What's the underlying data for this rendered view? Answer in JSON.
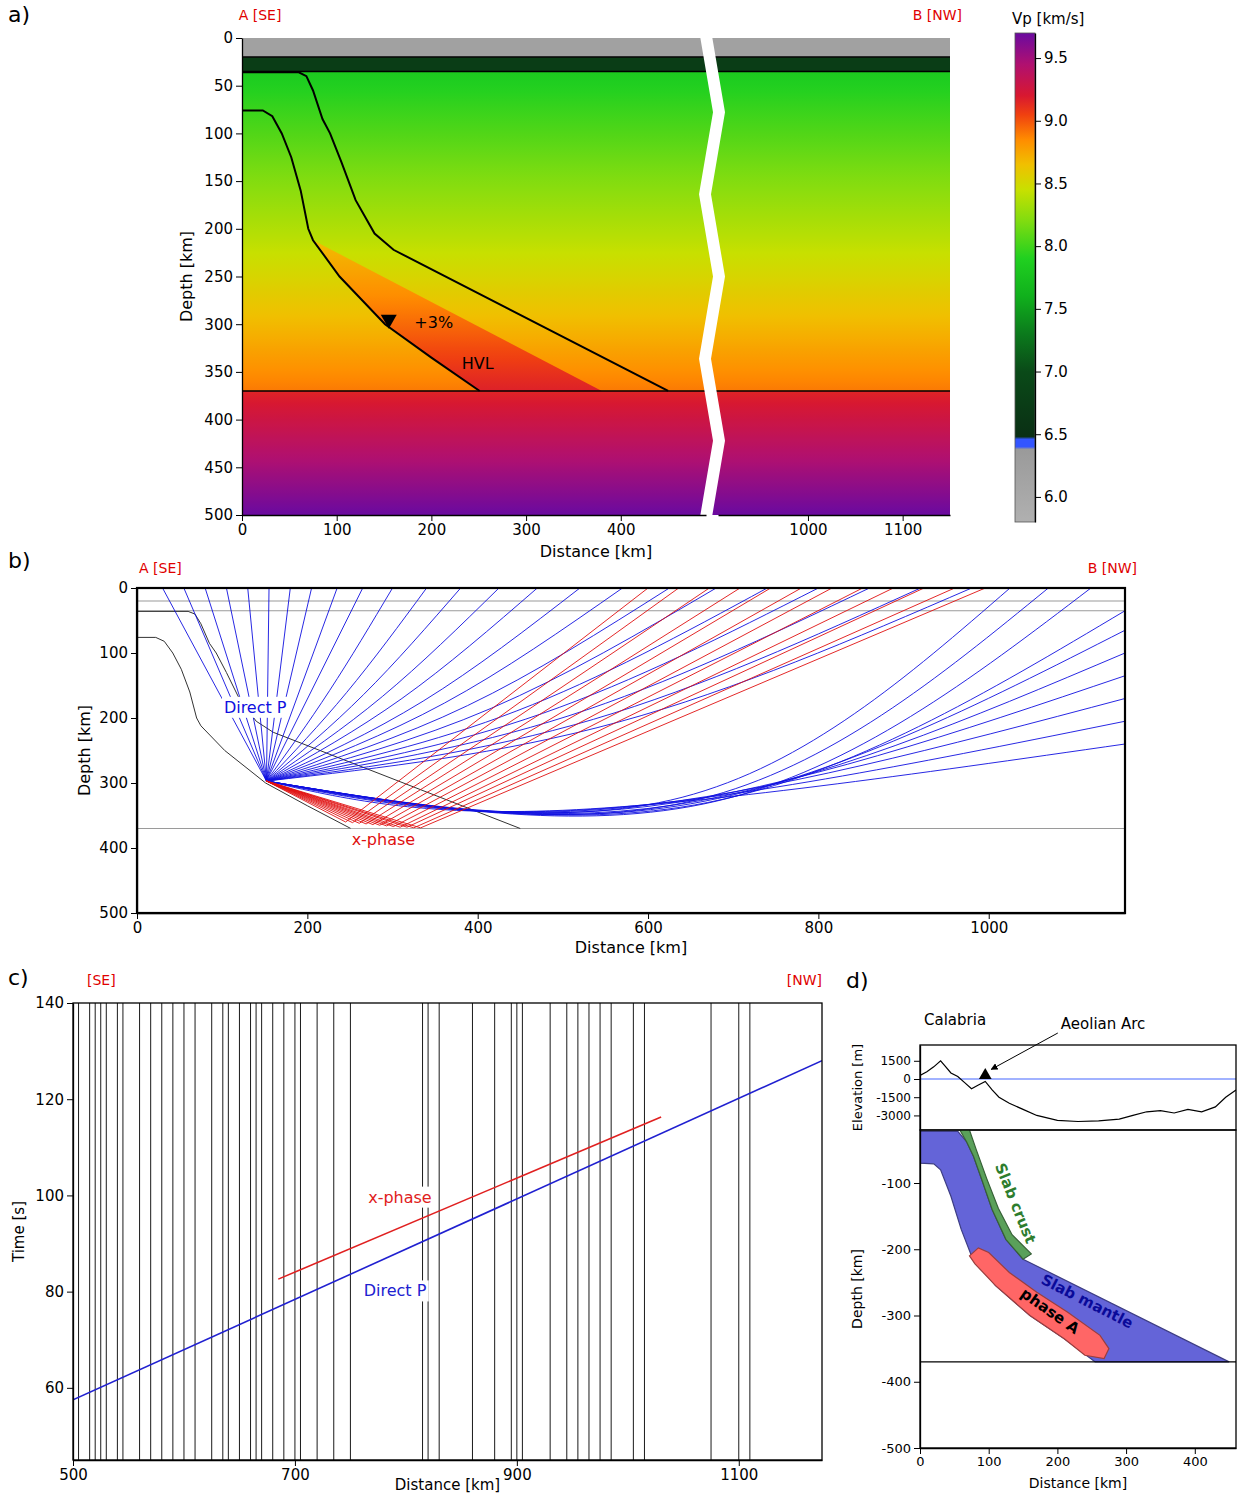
{
  "chart_data": [
    {
      "type": "section",
      "panel_label": "a)",
      "left_label": "A [SE]",
      "right_label": "B [NW]",
      "x_label": "Distance [km]",
      "y_label": "Depth [km]",
      "xlim": [
        0,
        1150
      ],
      "x_break": [
        490,
        905
      ],
      "xticks": [
        0,
        100,
        200,
        300,
        400,
        1000,
        1100
      ],
      "ylim": [
        500,
        0
      ],
      "yticks": [
        0,
        50,
        100,
        150,
        200,
        250,
        300,
        350,
        400,
        450,
        500
      ],
      "layers": [
        {
          "top": 0,
          "bottom": 20,
          "vp": [
            6.2,
            6.2
          ]
        },
        {
          "top": 20,
          "bottom": 35,
          "vp": [
            6.75,
            6.75
          ]
        },
        {
          "top": 35,
          "bottom": 370,
          "vp": [
            7.85,
            8.9
          ]
        },
        {
          "top": 370,
          "bottom": 500,
          "vp": [
            9.15,
            9.7
          ]
        }
      ],
      "slab_top": {
        "x": [
          0,
          60,
          68,
          75,
          85,
          93,
          105,
          120,
          140,
          160,
          450
        ],
        "depth": [
          36,
          36,
          40,
          55,
          85,
          100,
          130,
          170,
          205,
          222,
          370
        ]
      },
      "slab_bottom": {
        "x": [
          0,
          22,
          32,
          42,
          52,
          62,
          70,
          75,
          103,
          151,
          200,
          251
        ],
        "depth": [
          76,
          76,
          82,
          100,
          125,
          160,
          200,
          212,
          250,
          300,
          335,
          370
        ]
      },
      "hvl": {
        "x": [
          75,
          110,
          380,
          251,
          200,
          151,
          103
        ],
        "depth": [
          212,
          230,
          370,
          370,
          335,
          300,
          250
        ],
        "anomaly_percent": 3,
        "label": "+3%",
        "name": "HVL"
      },
      "source": {
        "x": 155,
        "depth": 295
      },
      "colorbar": {
        "title": "Vp [km/s]",
        "range": [
          5.8,
          9.7
        ],
        "ticks": [
          {
            "value": 6,
            "label": "6.0"
          },
          6.5,
          {
            "value": 7,
            "label": "7.0"
          },
          7.5,
          {
            "value": 8,
            "label": "8.0"
          },
          8.5,
          {
            "value": 9,
            "label": "9.0"
          },
          9.5
        ],
        "stops": [
          [
            5.8,
            "#b0b0b0"
          ],
          [
            6.38,
            "#9a9a9a"
          ],
          [
            6.4,
            "#3355ff"
          ],
          [
            6.46,
            "#3355ff"
          ],
          [
            6.48,
            "#0a2f14"
          ],
          [
            7.0,
            "#0a4a18"
          ],
          [
            7.3,
            "#0b7a1c"
          ],
          [
            7.6,
            "#10b01c"
          ],
          [
            7.9,
            "#20d020"
          ],
          [
            8.2,
            "#80dc10"
          ],
          [
            8.45,
            "#c8e000"
          ],
          [
            8.65,
            "#f0c000"
          ],
          [
            8.85,
            "#ff8c00"
          ],
          [
            9.05,
            "#f04010"
          ],
          [
            9.2,
            "#d81830"
          ],
          [
            9.45,
            "#b01070"
          ],
          [
            9.7,
            "#6a0aa0"
          ]
        ]
      }
    },
    {
      "type": "rays",
      "panel_label": "b)",
      "left_label": "A [SE]",
      "right_label": "B [NW]",
      "x_label": "Distance [km]",
      "y_label": "Depth [km]",
      "xlim": [
        0,
        1160
      ],
      "xticks": [
        0,
        200,
        400,
        600,
        800,
        1000
      ],
      "ylim": [
        500,
        0
      ],
      "yticks": [
        0,
        100,
        200,
        300,
        400,
        500
      ],
      "interfaces": [
        20,
        35,
        370
      ],
      "slab_top": {
        "x": [
          0,
          60,
          68,
          75,
          85,
          93,
          105,
          120,
          140,
          160,
          450
        ],
        "depth": [
          36,
          36,
          40,
          55,
          85,
          100,
          130,
          170,
          205,
          222,
          370
        ]
      },
      "slab_bottom": {
        "x": [
          0,
          22,
          32,
          42,
          52,
          62,
          70,
          75,
          103,
          151,
          200,
          251
        ],
        "depth": [
          76,
          76,
          82,
          100,
          125,
          160,
          200,
          212,
          250,
          300,
          335,
          370
        ]
      },
      "source": {
        "x": 152,
        "depth": 297
      },
      "series": [
        {
          "name": "Direct P",
          "type": "direct",
          "color": "#1010e0",
          "rays": [
            [
              [
                30,
                0
              ]
            ],
            [
              [
                55,
                0
              ]
            ],
            [
              [
                80,
                0
              ]
            ],
            [
              [
                105,
                0
              ]
            ],
            [
              [
                130,
                0
              ]
            ],
            [
              [
                155,
                0
              ]
            ],
            [
              [
                180,
                0
              ]
            ],
            [
              [
                205,
                0
              ]
            ],
            [
              [
                235,
                0
              ]
            ],
            [
              [
                265,
                0
              ]
            ],
            [
              [
                226,
                158
              ],
              [
                300,
                0
              ]
            ],
            [
              [
                246,
                161
              ],
              [
                340,
                0
              ]
            ],
            [
              [
                266,
                164
              ],
              [
                380,
                0
              ]
            ],
            [
              [
                288,
                167
              ],
              [
                425,
                0
              ]
            ],
            [
              [
                311,
                170
              ],
              [
                470,
                0
              ]
            ],
            [
              [
                336,
                174
              ],
              [
                520,
                0
              ]
            ],
            [
              [
                361,
                177
              ],
              [
                570,
                0
              ]
            ],
            [
              [
                388,
                181
              ],
              [
                625,
                0
              ]
            ],
            [
              [
                416,
                185
              ],
              [
                680,
                0
              ]
            ],
            [
              [
                446,
                189
              ],
              [
                740,
                0
              ]
            ],
            [
              [
                476,
                193
              ],
              [
                800,
                0
              ]
            ],
            [
              [
                506,
                197
              ],
              [
                860,
                0
              ]
            ],
            [
              [
                536,
                202
              ],
              [
                920,
                0
              ]
            ],
            [
              [
                566,
                206
              ],
              [
                980,
                0
              ]
            ],
            [
              [
                500,
                342
              ],
              [
                1160,
                240
              ]
            ],
            [
              [
                540,
                340
              ],
              [
                1160,
                205
              ]
            ],
            [
              [
                570,
                338
              ],
              [
                1160,
                170
              ]
            ],
            [
              [
                600,
                336
              ],
              [
                1160,
                135
              ]
            ],
            [
              [
                630,
                334
              ],
              [
                1160,
                100
              ]
            ],
            [
              [
                650,
                332
              ],
              [
                1160,
                65
              ]
            ],
            [
              [
                670,
                330
              ],
              [
                1160,
                35
              ]
            ],
            [
              [
                680,
                328
              ],
              [
                1120,
                0
              ]
            ],
            [
              [
                660,
                325
              ],
              [
                1070,
                0
              ]
            ],
            [
              [
                640,
                322
              ],
              [
                1025,
                0
              ]
            ]
          ]
        },
        {
          "name": "x-phase",
          "type": "reflected",
          "color": "#e01010",
          "rays": [
            [
              [
                245,
                360
              ],
              [
                600,
                0
              ]
            ],
            [
              [
                253,
                361
              ],
              [
                636,
                0
              ]
            ],
            [
              [
                261,
                362
              ],
              [
                672,
                0
              ]
            ],
            [
              [
                269,
                363
              ],
              [
                708,
                0
              ]
            ],
            [
              [
                277,
                364
              ],
              [
                744,
                0
              ]
            ],
            [
              [
                285,
                365
              ],
              [
                780,
                0
              ]
            ],
            [
              [
                293,
                366
              ],
              [
                816,
                0
              ]
            ],
            [
              [
                301,
                367
              ],
              [
                852,
                0
              ]
            ],
            [
              [
                309,
                368
              ],
              [
                888,
                0
              ]
            ],
            [
              [
                317,
                368
              ],
              [
                924,
                0
              ]
            ],
            [
              [
                325,
                369
              ],
              [
                960,
                0
              ]
            ],
            [
              [
                333,
                369
              ],
              [
                996,
                0
              ]
            ]
          ]
        }
      ]
    },
    {
      "type": "record_section",
      "panel_label": "c)",
      "left_label": "[SE]",
      "right_label": "[NW]",
      "x_label": "Distance [km]",
      "y_label": "Time [s]",
      "xlim": [
        500,
        1175
      ],
      "xticks": [
        500,
        700,
        900,
        1100
      ],
      "ylim": [
        45,
        140
      ],
      "yticks": [
        60,
        80,
        100,
        120,
        140
      ],
      "stations": [
        505,
        515,
        520,
        525,
        530,
        540,
        545,
        560,
        570,
        580,
        590,
        600,
        610,
        625,
        635,
        640,
        650,
        660,
        665,
        670,
        680,
        690,
        700,
        705,
        720,
        735,
        750,
        815,
        820,
        830,
        860,
        880,
        895,
        900,
        905,
        930,
        945,
        955,
        965,
        975,
        985,
        1005,
        1015,
        1075,
        1100,
        1110
      ],
      "series": [
        {
          "name": "Direct P",
          "color": "#2020d0",
          "x": [
            500,
            1175
          ],
          "values": [
            57.5,
            128
          ]
        },
        {
          "name": "x-phase",
          "color": "#e02020",
          "x": [
            685,
            1030
          ],
          "values": [
            82.6,
            116.3
          ]
        }
      ]
    },
    {
      "type": "line",
      "panel_label": "d)",
      "y_label": "Elevation [m]",
      "xlim": [
        0,
        460
      ],
      "ylim": [
        -4200,
        2800
      ],
      "yticks": [
        -3000,
        -1500,
        0,
        1500
      ],
      "tick_labels": "y",
      "sea_level": {
        "value": 0,
        "color": "#4466ff"
      },
      "x": [
        0,
        10,
        20,
        30,
        36,
        45,
        55,
        65,
        75,
        85,
        95,
        105,
        115,
        130,
        150,
        170,
        200,
        230,
        260,
        290,
        310,
        330,
        350,
        370,
        390,
        410,
        430,
        445,
        460
      ],
      "values": [
        300,
        600,
        1000,
        1500,
        1100,
        500,
        200,
        -300,
        -800,
        -500,
        -200,
        -900,
        -1500,
        -2000,
        -2500,
        -3000,
        -3400,
        -3500,
        -3450,
        -3300,
        -3000,
        -2700,
        -2600,
        -2800,
        -2500,
        -2700,
        -2300,
        -1500,
        -900
      ],
      "color": "#000000",
      "volcano": {
        "x": 95,
        "elevation": 300,
        "marker": "triangle"
      },
      "annotations": [
        {
          "text": "Calabria"
        },
        {
          "text": "Aeolian Arc"
        }
      ]
    },
    {
      "type": "polygons",
      "x_label": "Distance [km]",
      "y_label": "Depth [km]",
      "xlim": [
        0,
        460
      ],
      "xticks": [
        0,
        100,
        200,
        300,
        400
      ],
      "ylim": [
        -500,
        -20
      ],
      "yticks": [
        -500,
        -400,
        -300,
        -200,
        -100
      ],
      "discontinuity": -370,
      "series": [
        {
          "name": "Slab mantle",
          "color": "#6464d8",
          "x": [
            0,
            20,
            30,
            45,
            60,
            75,
            110,
            160,
            210,
            255,
            450,
            150,
            125,
            105,
            90,
            78,
            68,
            55,
            0
          ],
          "values": [
            -70,
            -71,
            -80,
            -120,
            -170,
            -210,
            -255,
            -300,
            -335,
            -370,
            -370,
            -215,
            -185,
            -140,
            -95,
            -60,
            -38,
            -22,
            -22
          ]
        },
        {
          "name": "Slab crust",
          "color": "#5aa05a",
          "x": [
            58,
            72,
            82,
            97,
            114,
            134,
            162,
            150,
            125,
            105,
            90,
            78,
            68
          ],
          "values": [
            -20,
            -20,
            -50,
            -93,
            -138,
            -178,
            -207,
            -215,
            -185,
            -140,
            -95,
            -60,
            -38
          ]
        },
        {
          "name": "phase A",
          "color": "#ff6666",
          "x": [
            72,
            85,
            100,
            130,
            170,
            215,
            262,
            275,
            268,
            240,
            210,
            160,
            110,
            80
          ],
          "values": [
            -210,
            -198,
            -205,
            -235,
            -265,
            -295,
            -330,
            -350,
            -365,
            -360,
            -335,
            -300,
            -255,
            -222
          ]
        }
      ]
    }
  ]
}
